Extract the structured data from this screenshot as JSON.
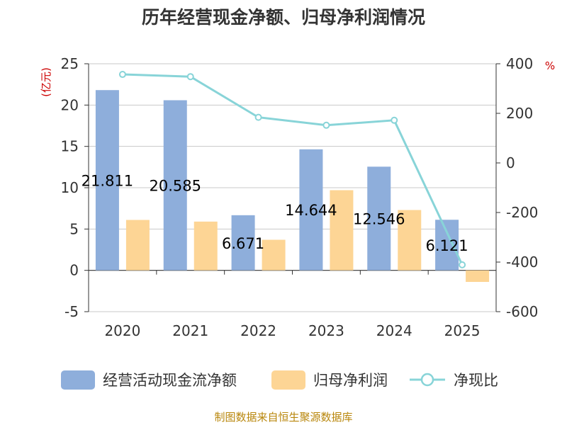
{
  "chart_data": {
    "type": "bar+line",
    "title": "历年经营现金净额、归母净利润情况",
    "categories": [
      "2020",
      "2021",
      "2022",
      "2023",
      "2024",
      "2025"
    ],
    "series": [
      {
        "name": "经营活动现金流净额",
        "type": "bar",
        "axis": "left",
        "color": "#8eaedb",
        "values": [
          21.811,
          20.585,
          6.671,
          14.644,
          12.546,
          6.121
        ],
        "labels": [
          "21.811",
          "20.585",
          "6.671",
          "14.644",
          "12.546",
          "6.121"
        ]
      },
      {
        "name": "归母净利润",
        "type": "bar",
        "axis": "left",
        "color": "#fdd595",
        "values": [
          6.1,
          5.9,
          3.7,
          9.7,
          7.3,
          -1.4
        ]
      },
      {
        "name": "净现比",
        "type": "line",
        "axis": "right",
        "color": "#88d4d8",
        "values": [
          357,
          348,
          184,
          152,
          172,
          -411
        ]
      }
    ],
    "y_left": {
      "unit": "(亿元)",
      "min": -5,
      "max": 25,
      "ticks": [
        -5,
        0,
        5,
        10,
        15,
        20,
        25
      ]
    },
    "y_right": {
      "unit": "%",
      "min": -600,
      "max": 400,
      "ticks": [
        -600,
        -400,
        -200,
        0,
        200,
        400
      ]
    },
    "grid": true,
    "legend_position": "bottom",
    "source": "制图数据来自恒生聚源数据库"
  }
}
